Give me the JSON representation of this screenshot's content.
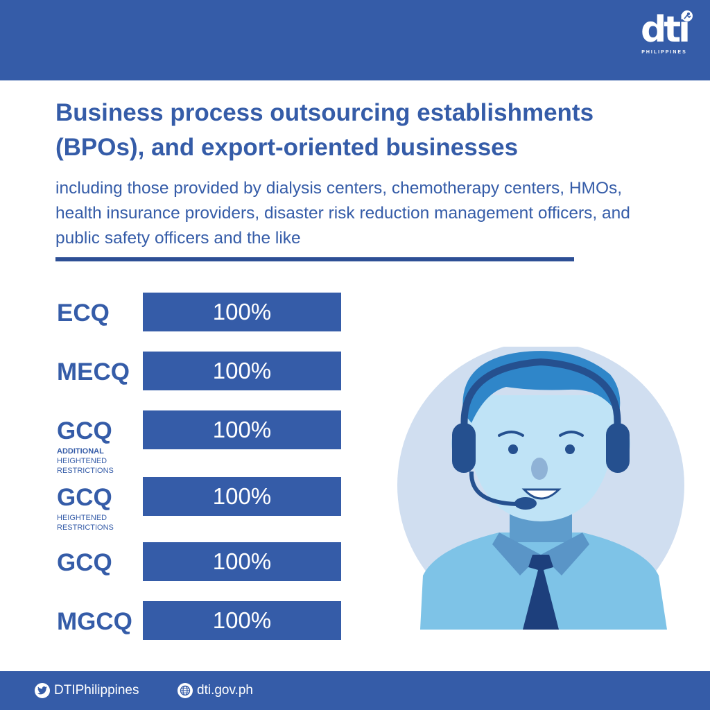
{
  "brand": {
    "logo_text": "dti",
    "logo_subtext": "PHILIPPINES",
    "primary_color": "#355ca8"
  },
  "header": {
    "title": "Business process outsourcing establishments (BPOs), and export-oriented businesses",
    "subtitle": "including those provided by dialysis centers, chemotherapy centers, HMOs, health insurance providers, disaster risk reduction management officers, and public safety officers and the like"
  },
  "rows": [
    {
      "label": "ECQ",
      "note_bold": "",
      "note": "",
      "value": "100%",
      "level": 1.0
    },
    {
      "label": "MECQ",
      "note_bold": "",
      "note": "",
      "value": "100%",
      "level": 1.0
    },
    {
      "label": "GCQ",
      "note_bold": "ADDITIONAL",
      "note": "HEIGHTENED RESTRICTIONS",
      "value": "100%",
      "level": 1.0
    },
    {
      "label": "GCQ",
      "note_bold": "",
      "note": "HEIGHTENED RESTRICTIONS",
      "value": "100%",
      "level": 1.0
    },
    {
      "label": "GCQ",
      "note_bold": "",
      "note": "",
      "value": "100%",
      "level": 1.0
    },
    {
      "label": "MGCQ",
      "note_bold": "",
      "note": "",
      "value": "100%",
      "level": 1.0
    }
  ],
  "footer": {
    "twitter": "DTIPhilippines",
    "website": "dti.gov.ph",
    "twitter_icon": "twitter-bird-icon",
    "web_icon": "globe-icon"
  }
}
